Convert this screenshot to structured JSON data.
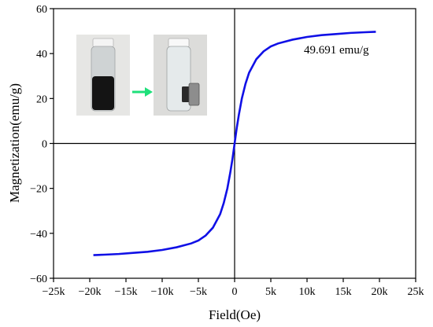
{
  "chart_data": {
    "type": "line",
    "xlabel": "Field(Oe)",
    "ylabel": "Magnetization(emu/g)",
    "xlim": [
      -25000,
      25000
    ],
    "ylim": [
      -60,
      60
    ],
    "x_ticks": [
      {
        "value": -25000,
        "label": "−25k"
      },
      {
        "value": -20000,
        "label": "−20k"
      },
      {
        "value": -15000,
        "label": "−15k"
      },
      {
        "value": -10000,
        "label": "−10k"
      },
      {
        "value": -5000,
        "label": "−5k"
      },
      {
        "value": 0,
        "label": "0"
      },
      {
        "value": 5000,
        "label": "5k"
      },
      {
        "value": 10000,
        "label": "10k"
      },
      {
        "value": 15000,
        "label": "15k"
      },
      {
        "value": 20000,
        "label": "20k"
      },
      {
        "value": 25000,
        "label": "25k"
      }
    ],
    "y_ticks": [
      {
        "value": -60,
        "label": "−60"
      },
      {
        "value": -40,
        "label": "−40"
      },
      {
        "value": -20,
        "label": "−20"
      },
      {
        "value": 0,
        "label": "0"
      },
      {
        "value": 20,
        "label": "20"
      },
      {
        "value": 40,
        "label": "40"
      },
      {
        "value": 60,
        "label": "60"
      }
    ],
    "zero_lines": true,
    "grid": false,
    "annotation": "49.691  emu/g",
    "series_color": "#1010e6",
    "series": [
      {
        "points": [
          [
            -19500,
            -49.7
          ],
          [
            -18000,
            -49.5
          ],
          [
            -16000,
            -49.2
          ],
          [
            -14000,
            -48.7
          ],
          [
            -12000,
            -48.2
          ],
          [
            -10000,
            -47.4
          ],
          [
            -8000,
            -46.2
          ],
          [
            -6000,
            -44.5
          ],
          [
            -5000,
            -43.2
          ],
          [
            -4000,
            -41.0
          ],
          [
            -3000,
            -37.5
          ],
          [
            -2000,
            -31.5
          ],
          [
            -1500,
            -26.5
          ],
          [
            -1000,
            -20.0
          ],
          [
            -600,
            -13.0
          ],
          [
            -300,
            -7.0
          ],
          [
            0,
            0
          ],
          [
            300,
            7.0
          ],
          [
            600,
            13.0
          ],
          [
            1000,
            20.0
          ],
          [
            1500,
            26.5
          ],
          [
            2000,
            31.5
          ],
          [
            3000,
            37.5
          ],
          [
            4000,
            41.0
          ],
          [
            5000,
            43.2
          ],
          [
            6000,
            44.5
          ],
          [
            8000,
            46.2
          ],
          [
            10000,
            47.4
          ],
          [
            12000,
            48.2
          ],
          [
            14000,
            48.7
          ],
          [
            16000,
            49.2
          ],
          [
            18000,
            49.5
          ],
          [
            19500,
            49.7
          ]
        ]
      }
    ]
  },
  "inset": {
    "arrow_color": "#1ee07a",
    "vials": [
      "dark-vial",
      "clear-vial"
    ]
  }
}
